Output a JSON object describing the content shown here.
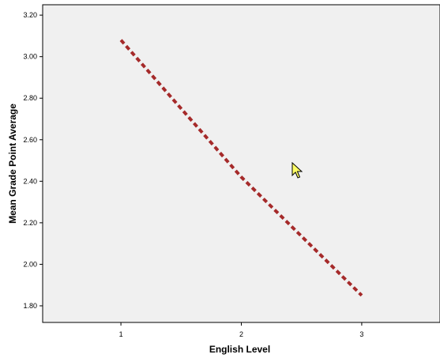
{
  "chart_data": {
    "type": "line",
    "title": "",
    "xlabel": "English Level",
    "ylabel": "Mean Grade Point Average",
    "x": [
      1,
      2,
      3
    ],
    "series": [
      {
        "values": [
          3.08,
          2.42,
          1.85
        ],
        "color": "#a52a2a",
        "line_style": "dashed"
      }
    ],
    "xlim": [
      0.35,
      3.65
    ],
    "ylim": [
      1.72,
      3.25
    ],
    "x_ticks": [
      1,
      2,
      3
    ],
    "x_tick_labels": [
      "1",
      "2",
      "3"
    ],
    "y_ticks": [
      1.8,
      2.0,
      2.2,
      2.4,
      2.6,
      2.8,
      3.0,
      3.2
    ],
    "y_tick_labels": [
      "1.80",
      "2.00",
      "2.20",
      "2.40",
      "2.60",
      "2.80",
      "3.00",
      "3.20"
    ],
    "grid": false,
    "plot_background": "#f0f0f0"
  },
  "cursor": {
    "icon": "mouse-pointer-icon",
    "color": "#ffff66"
  }
}
